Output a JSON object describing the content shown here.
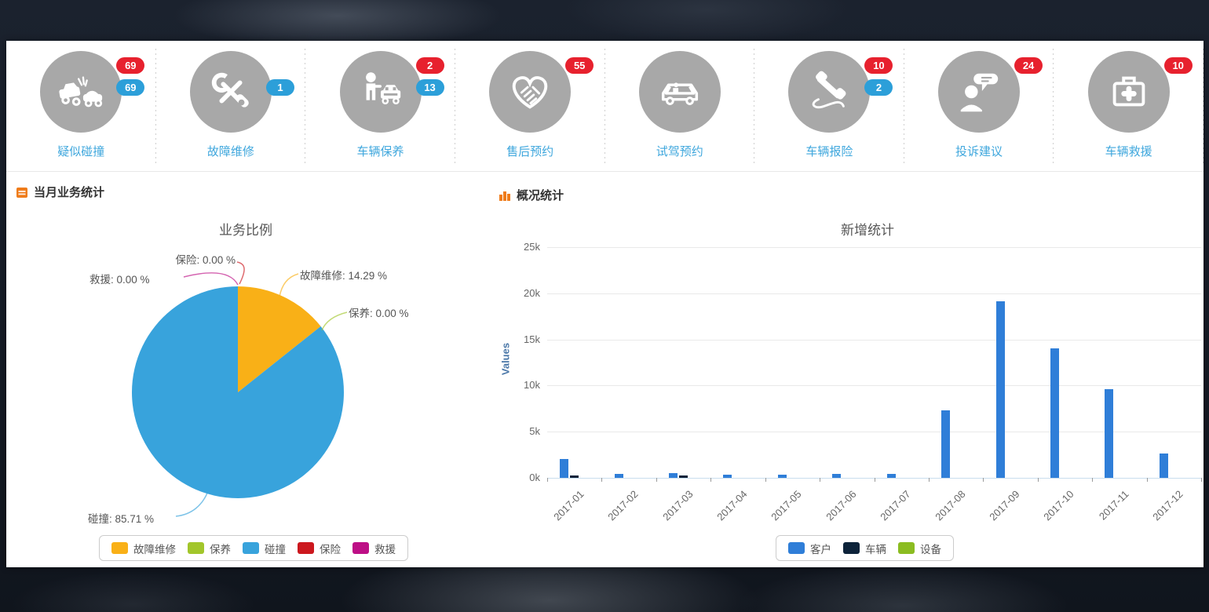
{
  "quick_icons": [
    {
      "label": "疑似碰撞",
      "icon": "car-crash-icon",
      "badges": [
        {
          "color": "red",
          "value": "69"
        },
        {
          "color": "blue",
          "value": "69"
        }
      ]
    },
    {
      "label": "故障维修",
      "icon": "repair-tools-icon",
      "badges": [
        {
          "color": "blue",
          "value": "1"
        }
      ]
    },
    {
      "label": "车辆保养",
      "icon": "person-car-icon",
      "badges": [
        {
          "color": "red",
          "value": "2"
        },
        {
          "color": "blue",
          "value": "13"
        }
      ]
    },
    {
      "label": "售后预约",
      "icon": "handshake-heart-icon",
      "badges": [
        {
          "color": "red",
          "value": "55"
        }
      ]
    },
    {
      "label": "试驾预约",
      "icon": "car-icon",
      "badges": []
    },
    {
      "label": "车辆报险",
      "icon": "phone-icon",
      "badges": [
        {
          "color": "red",
          "value": "10"
        },
        {
          "color": "blue",
          "value": "2"
        }
      ]
    },
    {
      "label": "投诉建议",
      "icon": "feedback-person-icon",
      "badges": [
        {
          "color": "red",
          "value": "24"
        }
      ]
    },
    {
      "label": "车辆救援",
      "icon": "first-aid-kit-icon",
      "badges": [
        {
          "color": "red",
          "value": "10"
        }
      ]
    }
  ],
  "left_panel": {
    "header": "当月业务统计"
  },
  "right_panel": {
    "header": "概况统计"
  },
  "colors": {
    "badge_red": "#e7212e",
    "badge_blue": "#2c9fd9",
    "icon_circle": "#a8a8a8",
    "icon_label": "#3fa7dd",
    "header_icon": "#ef7c1b"
  },
  "chart_data": [
    {
      "type": "pie",
      "title": "业务比例",
      "slices": [
        {
          "name": "故障维修",
          "value": 14.29,
          "color": "#f9b017"
        },
        {
          "name": "保养",
          "value": 0.0,
          "color": "#a2c62b"
        },
        {
          "name": "碰撞",
          "value": 85.71,
          "color": "#38a3dc"
        },
        {
          "name": "保险",
          "value": 0.0,
          "color": "#cc181e"
        },
        {
          "name": "救援",
          "value": 0.0,
          "color": "#bd0f86"
        }
      ],
      "callouts": [
        {
          "slice": "保险",
          "text": "保险: 0.00 %"
        },
        {
          "slice": "救援",
          "text": "救援: 0.00 %"
        },
        {
          "slice": "故障维修",
          "text": "故障维修: 14.29 %"
        },
        {
          "slice": "保养",
          "text": "保养: 0.00 %"
        },
        {
          "slice": "碰撞",
          "text": "碰撞: 85.71 %"
        }
      ],
      "legend": [
        "故障维修",
        "保养",
        "碰撞",
        "保险",
        "救援"
      ],
      "legend_position": "bottom"
    },
    {
      "type": "bar",
      "title": "新增统计",
      "ylabel": "Values",
      "yticks": [
        "25k",
        "20k",
        "15k",
        "10k",
        "5k",
        "0k"
      ],
      "ylim": [
        0,
        25000
      ],
      "grid": true,
      "categories": [
        "2017-01",
        "2017-02",
        "2017-03",
        "2017-04",
        "2017-05",
        "2017-06",
        "2017-07",
        "2017-08",
        "2017-09",
        "2017-10",
        "2017-11",
        "2017-12"
      ],
      "series": [
        {
          "name": "客户",
          "color": "#2f7ed8",
          "values": [
            2000,
            400,
            500,
            350,
            350,
            400,
            450,
            7300,
            19100,
            14000,
            9600,
            2600
          ]
        },
        {
          "name": "车辆",
          "color": "#0d233a",
          "values": [
            250,
            0,
            250,
            0,
            0,
            0,
            0,
            0,
            0,
            0,
            0,
            0
          ]
        },
        {
          "name": "设备",
          "color": "#8bbc21",
          "values": [
            0,
            0,
            0,
            0,
            0,
            0,
            0,
            0,
            0,
            0,
            0,
            0
          ]
        }
      ],
      "legend_position": "bottom"
    }
  ]
}
